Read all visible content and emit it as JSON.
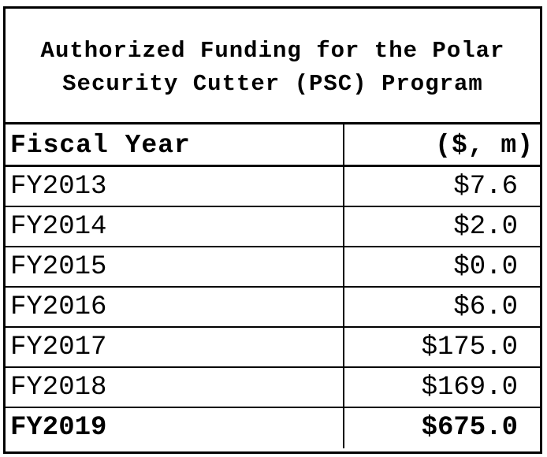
{
  "chart_data": {
    "type": "table",
    "title": "Authorized Funding for the Polar\nSecurity Cutter (PSC) Program",
    "columns": [
      "Fiscal Year",
      "($, m)"
    ],
    "rows": [
      {
        "year": "FY2013",
        "value": "$7.6"
      },
      {
        "year": "FY2014",
        "value": "$2.0"
      },
      {
        "year": "FY2015",
        "value": "$0.0"
      },
      {
        "year": "FY2016",
        "value": "$6.0"
      },
      {
        "year": "FY2017",
        "value": "$175.0"
      },
      {
        "year": "FY2018",
        "value": "$169.0"
      },
      {
        "year": "FY2019",
        "value": "$675.0"
      }
    ],
    "x": [
      "FY2013",
      "FY2014",
      "FY2015",
      "FY2016",
      "FY2017",
      "FY2018",
      "FY2019"
    ],
    "values": [
      7.6,
      2.0,
      0.0,
      6.0,
      175.0,
      169.0,
      675.0
    ],
    "bold_row": "FY2019"
  }
}
